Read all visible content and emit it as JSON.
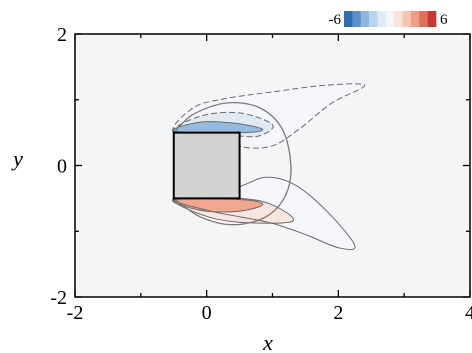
{
  "chart_data": {
    "type": "heatmap",
    "title": "",
    "xlabel": "x",
    "ylabel": "y",
    "xlim": [
      -2,
      4
    ],
    "ylim": [
      -2,
      2
    ],
    "xticks": [
      -2,
      0,
      2,
      4
    ],
    "yticks": [
      -2,
      0,
      2
    ],
    "xtick_labels": [
      "-2",
      "0",
      "2",
      "4"
    ],
    "ytick_labels": [
      "-2",
      "0",
      "2"
    ],
    "grid": false,
    "colorbar": {
      "placement": "top-right",
      "min": -6,
      "max": 6,
      "min_label": "-6",
      "max_label": "6",
      "colors": [
        "#2f6db3",
        "#5a90c8",
        "#8fb6dc",
        "#b9d3ea",
        "#dde9f4",
        "#f4f6f8",
        "#f9e3dc",
        "#f5c4b3",
        "#ee9e86",
        "#e0705a",
        "#c83737"
      ]
    },
    "body": {
      "shape": "square",
      "x_range": [
        -0.5,
        0.5
      ],
      "y_range": [
        -0.5,
        0.5
      ],
      "fill": "#d3d3d3"
    },
    "contours": [
      {
        "sign": "negative",
        "level": -0.5,
        "style": "dashed",
        "points": [
          [
            -0.5,
            0.5
          ],
          [
            -0.2,
            0.88
          ],
          [
            0.3,
            1.02
          ],
          [
            1.0,
            1.12
          ],
          [
            1.8,
            1.22
          ],
          [
            2.4,
            1.22
          ],
          [
            1.9,
            0.95
          ],
          [
            1.4,
            0.55
          ],
          [
            1.0,
            0.3
          ],
          [
            0.55,
            0.28
          ],
          [
            0.3,
            0.45
          ]
        ]
      },
      {
        "sign": "negative",
        "level": -1.5,
        "style": "dashed",
        "points": [
          [
            -0.5,
            0.5
          ],
          [
            -0.1,
            0.75
          ],
          [
            0.5,
            0.8
          ],
          [
            1.0,
            0.62
          ],
          [
            0.8,
            0.45
          ],
          [
            0.45,
            0.45
          ]
        ]
      },
      {
        "sign": "negative",
        "level": -3.5,
        "style": "solid",
        "points": [
          [
            -0.5,
            0.52
          ],
          [
            -0.1,
            0.66
          ],
          [
            0.45,
            0.64
          ],
          [
            0.85,
            0.55
          ],
          [
            0.55,
            0.5
          ]
        ]
      },
      {
        "sign": "positive",
        "level": 0.5,
        "style": "solid",
        "points": [
          [
            -0.5,
            -0.5
          ],
          [
            0.0,
            -0.68
          ],
          [
            0.5,
            -0.78
          ],
          [
            1.0,
            -0.88
          ],
          [
            1.5,
            -1.05
          ],
          [
            2.0,
            -1.25
          ],
          [
            2.25,
            -1.22
          ],
          [
            1.85,
            -0.72
          ],
          [
            1.35,
            -0.3
          ],
          [
            0.9,
            -0.18
          ],
          [
            0.4,
            -0.35
          ]
        ]
      },
      {
        "sign": "positive",
        "level": 1.5,
        "style": "solid",
        "points": [
          [
            -0.5,
            -0.5
          ],
          [
            -0.1,
            -0.74
          ],
          [
            0.45,
            -0.86
          ],
          [
            1.3,
            -0.85
          ],
          [
            1.0,
            -0.6
          ],
          [
            0.5,
            -0.5
          ]
        ]
      },
      {
        "sign": "positive",
        "level": 3.5,
        "style": "solid",
        "points": [
          [
            -0.5,
            -0.52
          ],
          [
            -0.1,
            -0.68
          ],
          [
            0.45,
            -0.7
          ],
          [
            0.85,
            -0.6
          ],
          [
            0.55,
            -0.52
          ]
        ]
      }
    ],
    "streamline": {
      "points": [
        [
          -0.5,
          0.5
        ],
        [
          -0.2,
          0.78
        ],
        [
          0.3,
          0.95
        ],
        [
          0.8,
          0.88
        ],
        [
          1.15,
          0.55
        ],
        [
          1.28,
          0.0
        ],
        [
          1.2,
          -0.45
        ],
        [
          0.9,
          -0.78
        ],
        [
          0.4,
          -0.9
        ],
        [
          -0.1,
          -0.78
        ],
        [
          -0.5,
          -0.5
        ]
      ]
    }
  }
}
